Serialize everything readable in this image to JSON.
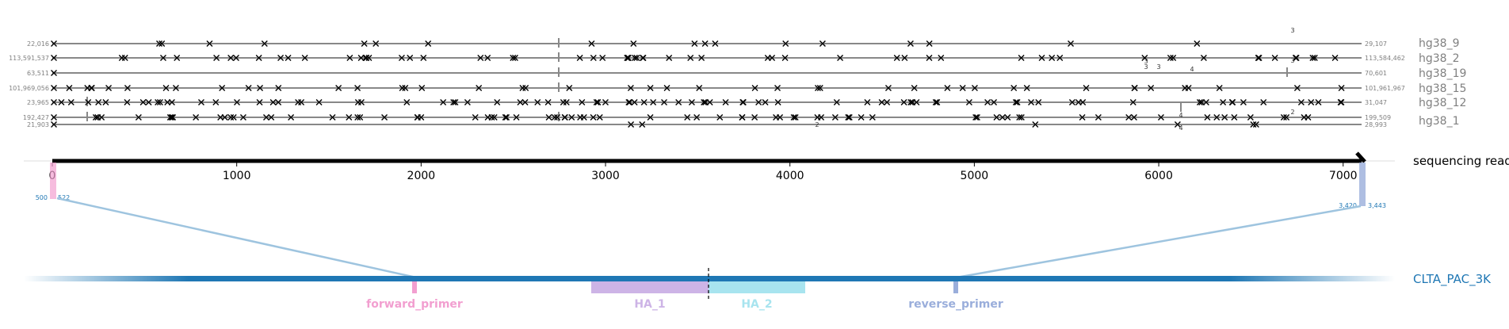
{
  "reference_tracks": [
    {
      "name": "hg38_9",
      "left_coord": "22,016",
      "right_coord": "29,107"
    },
    {
      "name": "hg38_2",
      "left_coord": "113,591,537",
      "right_coord": "113,584,462"
    },
    {
      "name": "hg38_19",
      "left_coord": "63,511",
      "right_coord": "70,601"
    },
    {
      "name": "hg38_15",
      "left_coord": "101,969,056",
      "right_coord": "101,961,967"
    },
    {
      "name": "hg38_12",
      "left_coord": "23,965",
      "right_coord": "31,047"
    },
    {
      "name": "hg38_1",
      "left_coord": "192,427",
      "right_coord": "199,509"
    },
    {
      "name": "",
      "left_coord": "21,903",
      "right_coord": "28,993"
    }
  ],
  "read": {
    "label": "sequencing read",
    "ticks": [
      "0",
      "1000",
      "2000",
      "3000",
      "4000",
      "5000",
      "6000",
      "7000"
    ],
    "tick_values": [
      0,
      1000,
      2000,
      3000,
      4000,
      5000,
      6000,
      7000
    ],
    "length": 7100,
    "left_alignment": {
      "start": "500",
      "end": "522"
    },
    "right_alignment": {
      "start": "3,420",
      "end": "3,443"
    }
  },
  "target": {
    "label": "CLTA_PAC_3K",
    "features": [
      {
        "name": "forward_primer",
        "color": "#f29fd0"
      },
      {
        "name": "HA_1",
        "color": "#cdb4e6"
      },
      {
        "name": "HA_2",
        "color": "#a8e4ef"
      },
      {
        "name": "reverse_primer",
        "color": "#9aaedb"
      }
    ]
  },
  "annotations": [
    "3",
    "3",
    "3",
    "3",
    "3",
    "4",
    "4",
    "2",
    "2",
    "4",
    "4"
  ],
  "colors": {
    "track_line": "#888888",
    "label_gray": "#808080",
    "target_blue": "#1f77b4",
    "link": "#9ec4df"
  }
}
